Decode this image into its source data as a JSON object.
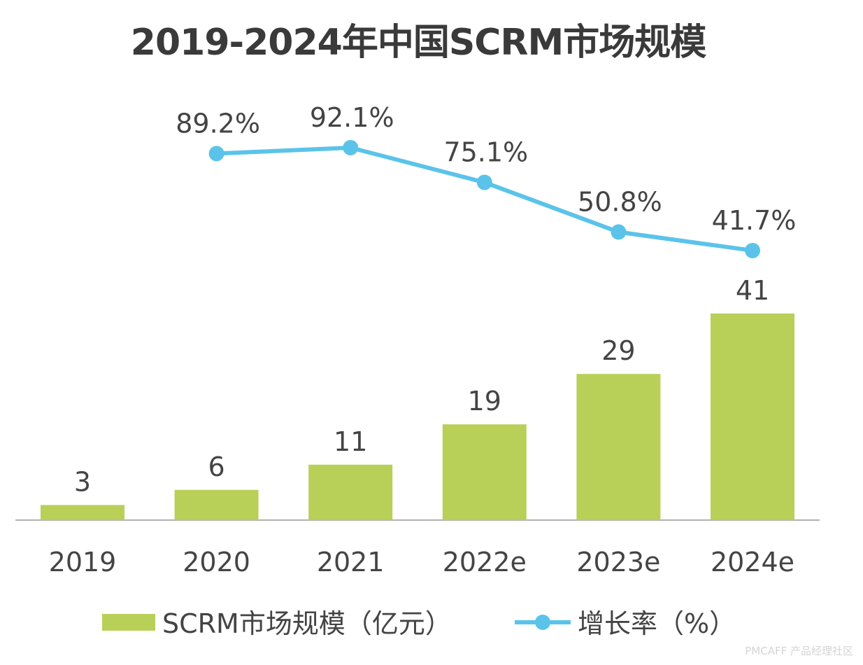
{
  "chart_data": {
    "type": "bar+line",
    "title": "2019-2024年中国SCRM市场规模",
    "categories": [
      "2019",
      "2020",
      "2021",
      "2022e",
      "2023e",
      "2024e"
    ],
    "series": [
      {
        "name": "SCRM市场规模（亿元）",
        "type": "bar",
        "color": "#b8d058",
        "values": [
          3,
          6,
          11,
          19,
          29,
          41
        ],
        "labels": [
          "3",
          "6",
          "11",
          "19",
          "29",
          "41"
        ]
      },
      {
        "name": "增长率（%）",
        "type": "line",
        "color": "#5bc3ea",
        "values": [
          null,
          89.2,
          92.1,
          75.1,
          50.8,
          41.7
        ],
        "labels": [
          "",
          "89.2%",
          "92.1%",
          "75.1%",
          "50.8%",
          "41.7%"
        ]
      }
    ],
    "legend_position": "bottom",
    "grid": false,
    "axis_color": "#999999"
  },
  "watermark": "PMCAFF 产品经理社区"
}
